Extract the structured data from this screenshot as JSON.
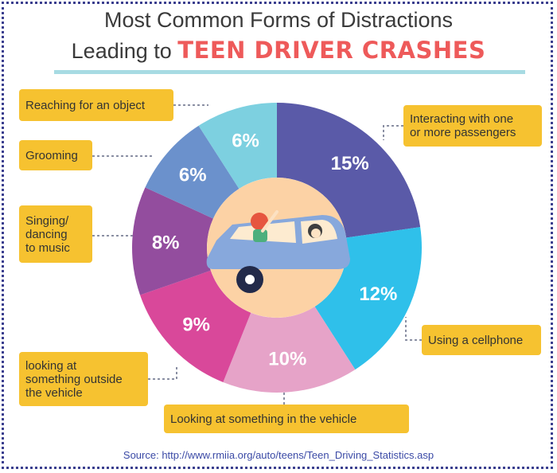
{
  "title": {
    "line1": "Most Common Forms of Distractions",
    "line2_prefix": "Leading to ",
    "line2_accent": "TEEN DRIVER CRASHES"
  },
  "colors": {
    "title_accent": "#ee5a5a",
    "label_box": "#f6c230",
    "connector": "#8a8fa3",
    "source_text": "#3b4aa6"
  },
  "chart_data": {
    "type": "pie",
    "style": "donut",
    "center_icon": "car-with-teens-icon",
    "slices": [
      {
        "label": "Interacting with one or more passengers",
        "value": 15,
        "value_text": "15%",
        "color": "#5a5aa8"
      },
      {
        "label": "Using a cellphone",
        "value": 12,
        "value_text": "12%",
        "color": "#2fc0ea"
      },
      {
        "label": "Looking at something in the vehicle",
        "value": 10,
        "value_text": "10%",
        "color": "#e6a3c8"
      },
      {
        "label": "looking at something outside the vehicle",
        "value": 9,
        "value_text": "9%",
        "color": "#d9489a"
      },
      {
        "label": "Singing/ dancing to music",
        "value": 8,
        "value_text": "8%",
        "color": "#934d9e"
      },
      {
        "label": "Grooming",
        "value": 6,
        "value_text": "6%",
        "color": "#6b91cc"
      },
      {
        "label": "Reaching for an object",
        "value": 6,
        "value_text": "6%",
        "color": "#7dd0e0"
      }
    ]
  },
  "labels": {
    "passengers": [
      "Interacting with one",
      "or more passengers"
    ],
    "cellphone": [
      "Using a cellphone"
    ],
    "in_vehicle": [
      "Looking at something in the vehicle"
    ],
    "outside_vehicle": [
      "looking at",
      "something outside",
      "the vehicle"
    ],
    "singing": [
      "Singing/",
      "dancing",
      "to music"
    ],
    "grooming": [
      "Grooming"
    ],
    "reaching": [
      "Reaching for an object"
    ]
  },
  "source": "Source: http://www.rmiia.org/auto/teens/Teen_Driving_Statistics.asp"
}
